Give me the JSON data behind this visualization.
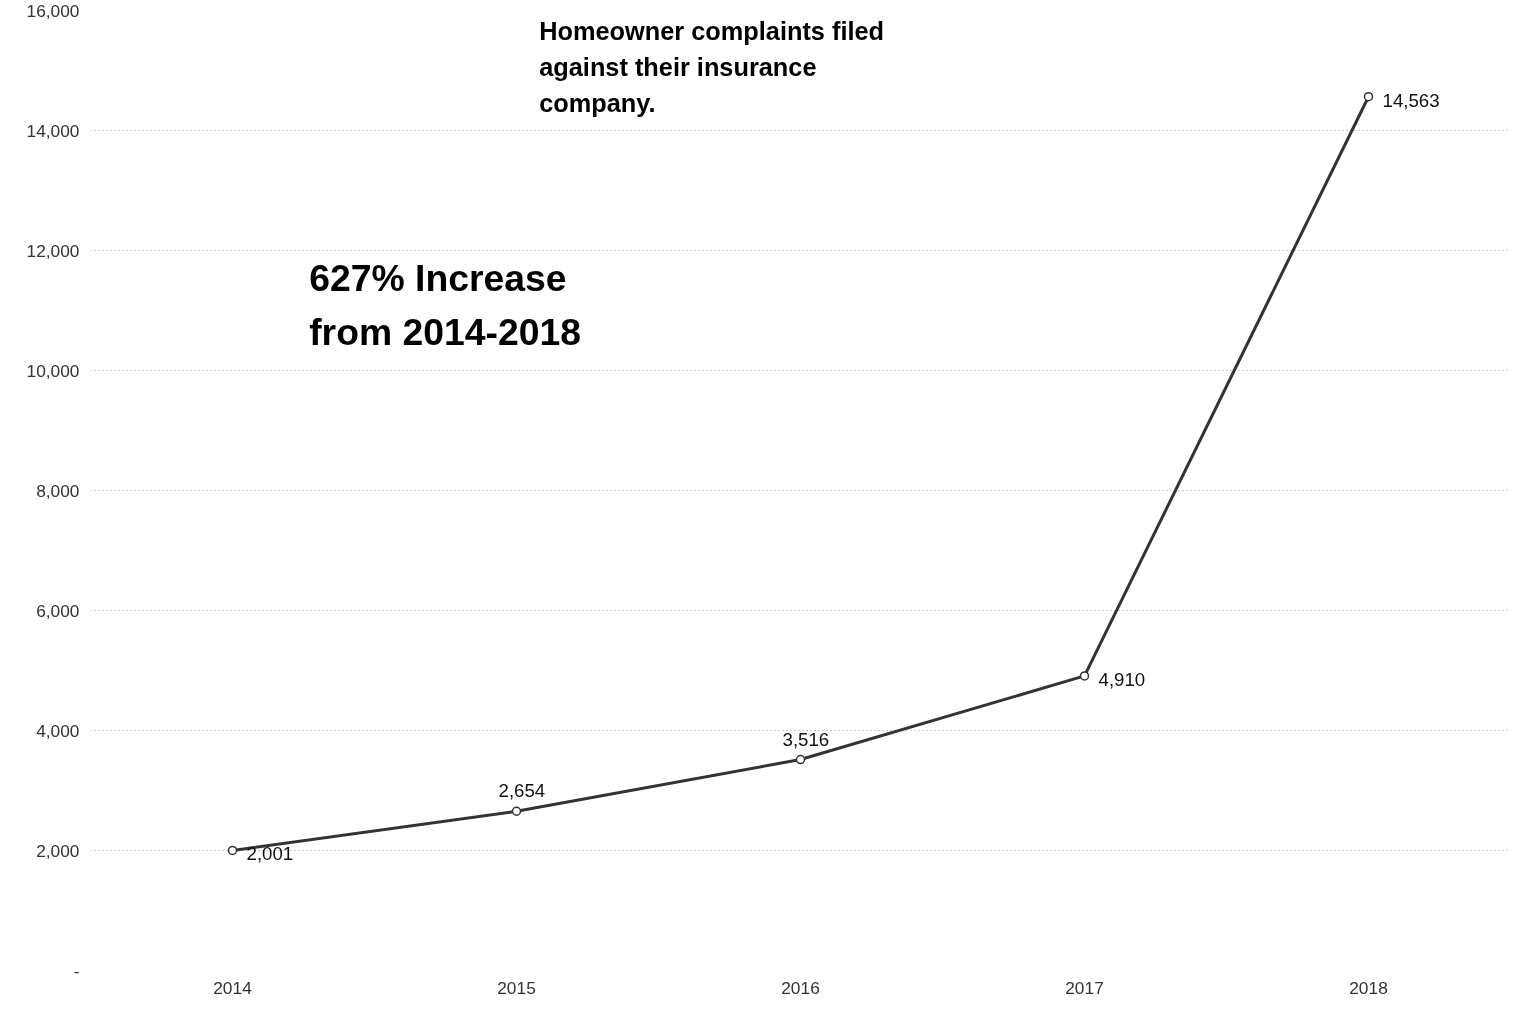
{
  "chart_data": {
    "type": "line",
    "title": "Homeowner complaints filed against their insurance company.",
    "annotations": [
      "627% Increase from 2014-2018"
    ],
    "categories": [
      "2014",
      "2015",
      "2016",
      "2017",
      "2018"
    ],
    "series": [
      {
        "color": "#333333",
        "values": [
          2001,
          2654,
          3516,
          4910,
          14563
        ],
        "value_labels": [
          "2,001",
          "2,654",
          "3,516",
          "4,910",
          "14,563"
        ]
      }
    ],
    "ylim": [
      0,
      16000
    ],
    "yticks": [
      {
        "value": 0,
        "label": "-"
      },
      {
        "value": 2000,
        "label": "2,000"
      },
      {
        "value": 4000,
        "label": "4,000"
      },
      {
        "value": 6000,
        "label": "6,000"
      },
      {
        "value": 8000,
        "label": "8,000"
      },
      {
        "value": 10000,
        "label": "10,000"
      },
      {
        "value": 12000,
        "label": "12,000"
      },
      {
        "value": 14000,
        "label": "14,000"
      },
      {
        "value": 16000,
        "label": "16,000"
      }
    ],
    "grid": "y",
    "marker": "circle",
    "line_style": "solid"
  }
}
